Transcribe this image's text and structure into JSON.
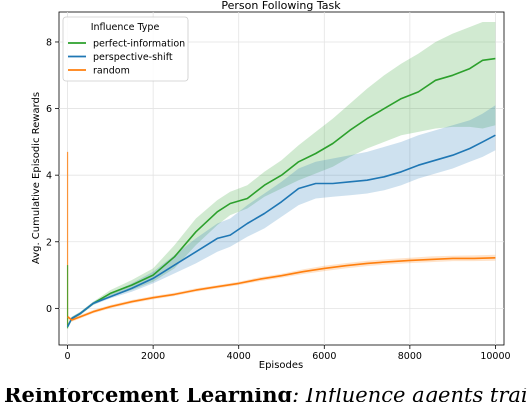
{
  "chart_data": {
    "type": "line",
    "title": "Person Following Task",
    "xlabel": "Episodes",
    "ylabel": "Avg. Cumulative Episodic Rewards",
    "xlim": [
      -200,
      10200
    ],
    "ylim": [
      -1.1,
      8.9
    ],
    "xticks": [
      0,
      2000,
      4000,
      6000,
      8000,
      10000
    ],
    "yticks": [
      0,
      2,
      4,
      6,
      8
    ],
    "grid": true,
    "legend": {
      "title": "Influence Type",
      "placement": "top-left"
    },
    "series": [
      {
        "name": "perfect-information",
        "color": "#2ca02c",
        "x": [
          0,
          100,
          300,
          600,
          1000,
          1500,
          2000,
          2500,
          3000,
          3500,
          3800,
          4200,
          4600,
          5000,
          5400,
          5800,
          6200,
          6600,
          7000,
          7400,
          7800,
          8200,
          8600,
          9000,
          9400,
          9700,
          10000
        ],
        "y": [
          -0.55,
          -0.3,
          -0.15,
          0.15,
          0.45,
          0.7,
          1.0,
          1.55,
          2.3,
          2.9,
          3.15,
          3.3,
          3.7,
          4.0,
          4.4,
          4.65,
          4.95,
          5.35,
          5.7,
          6.0,
          6.3,
          6.5,
          6.85,
          7.0,
          7.2,
          7.45,
          7.5
        ],
        "low": [
          -0.6,
          -0.35,
          -0.2,
          0.1,
          0.35,
          0.55,
          0.8,
          1.2,
          1.9,
          2.5,
          2.8,
          3.0,
          3.35,
          3.6,
          3.85,
          4.05,
          4.25,
          4.55,
          4.8,
          5.0,
          5.2,
          5.3,
          5.4,
          5.45,
          5.45,
          5.4,
          5.5
        ],
        "high": [
          -0.5,
          -0.25,
          -0.1,
          0.2,
          0.55,
          0.85,
          1.2,
          1.9,
          2.7,
          3.25,
          3.5,
          3.7,
          4.1,
          4.45,
          4.9,
          5.3,
          5.7,
          6.15,
          6.6,
          7.0,
          7.35,
          7.65,
          8.0,
          8.25,
          8.45,
          8.6,
          8.6
        ]
      },
      {
        "name": "perspective-shift",
        "color": "#1f77b4",
        "x": [
          0,
          100,
          300,
          600,
          1000,
          1500,
          2000,
          2500,
          3000,
          3500,
          3800,
          4200,
          4600,
          5000,
          5400,
          5800,
          6200,
          6600,
          7000,
          7400,
          7800,
          8200,
          8600,
          9000,
          9400,
          9700,
          10000
        ],
        "y": [
          -0.55,
          -0.3,
          -0.15,
          0.15,
          0.35,
          0.6,
          0.9,
          1.3,
          1.7,
          2.1,
          2.2,
          2.55,
          2.85,
          3.2,
          3.6,
          3.75,
          3.75,
          3.8,
          3.85,
          3.95,
          4.1,
          4.3,
          4.45,
          4.6,
          4.8,
          5.0,
          5.2
        ],
        "low": [
          -0.6,
          -0.35,
          -0.2,
          0.1,
          0.3,
          0.5,
          0.75,
          1.05,
          1.35,
          1.7,
          1.85,
          2.15,
          2.4,
          2.75,
          3.1,
          3.3,
          3.35,
          3.4,
          3.45,
          3.55,
          3.7,
          3.9,
          4.05,
          4.2,
          4.4,
          4.55,
          4.75
        ],
        "high": [
          -0.5,
          -0.25,
          -0.1,
          0.2,
          0.45,
          0.75,
          1.1,
          1.6,
          2.1,
          2.55,
          2.7,
          3.1,
          3.45,
          3.8,
          4.2,
          4.4,
          4.5,
          4.6,
          4.7,
          4.85,
          5.0,
          5.2,
          5.35,
          5.5,
          5.65,
          5.85,
          6.1
        ]
      },
      {
        "name": "random",
        "color": "#ff7f0e",
        "x": [
          0,
          100,
          300,
          600,
          1000,
          1500,
          2000,
          2500,
          3000,
          3500,
          4000,
          4500,
          5000,
          5500,
          6000,
          6500,
          7000,
          7500,
          8000,
          8500,
          9000,
          9500,
          10000
        ],
        "y": [
          -0.25,
          -0.35,
          -0.25,
          -0.1,
          0.05,
          0.2,
          0.32,
          0.42,
          0.55,
          0.65,
          0.75,
          0.88,
          0.98,
          1.1,
          1.2,
          1.28,
          1.35,
          1.4,
          1.44,
          1.47,
          1.5,
          1.5,
          1.52
        ],
        "low": [
          -0.3,
          -0.4,
          -0.3,
          -0.15,
          0.0,
          0.15,
          0.27,
          0.37,
          0.5,
          0.6,
          0.7,
          0.82,
          0.92,
          1.03,
          1.12,
          1.2,
          1.27,
          1.32,
          1.36,
          1.39,
          1.42,
          1.42,
          1.43
        ],
        "high": [
          -0.2,
          -0.3,
          -0.2,
          -0.05,
          0.1,
          0.25,
          0.37,
          0.47,
          0.6,
          0.7,
          0.8,
          0.94,
          1.04,
          1.17,
          1.28,
          1.36,
          1.43,
          1.48,
          1.52,
          1.56,
          1.58,
          1.59,
          1.61
        ]
      }
    ],
    "annotations": [
      {
        "series": "random",
        "x": 0,
        "y_from": -0.5,
        "y_to": 4.7
      },
      {
        "series": "perfect-information",
        "x": 0,
        "y_from": -0.6,
        "y_to": 1.3
      }
    ]
  },
  "caption": {
    "bold": "Reinforcement Learning",
    "rest": ": Influence agents trained"
  }
}
